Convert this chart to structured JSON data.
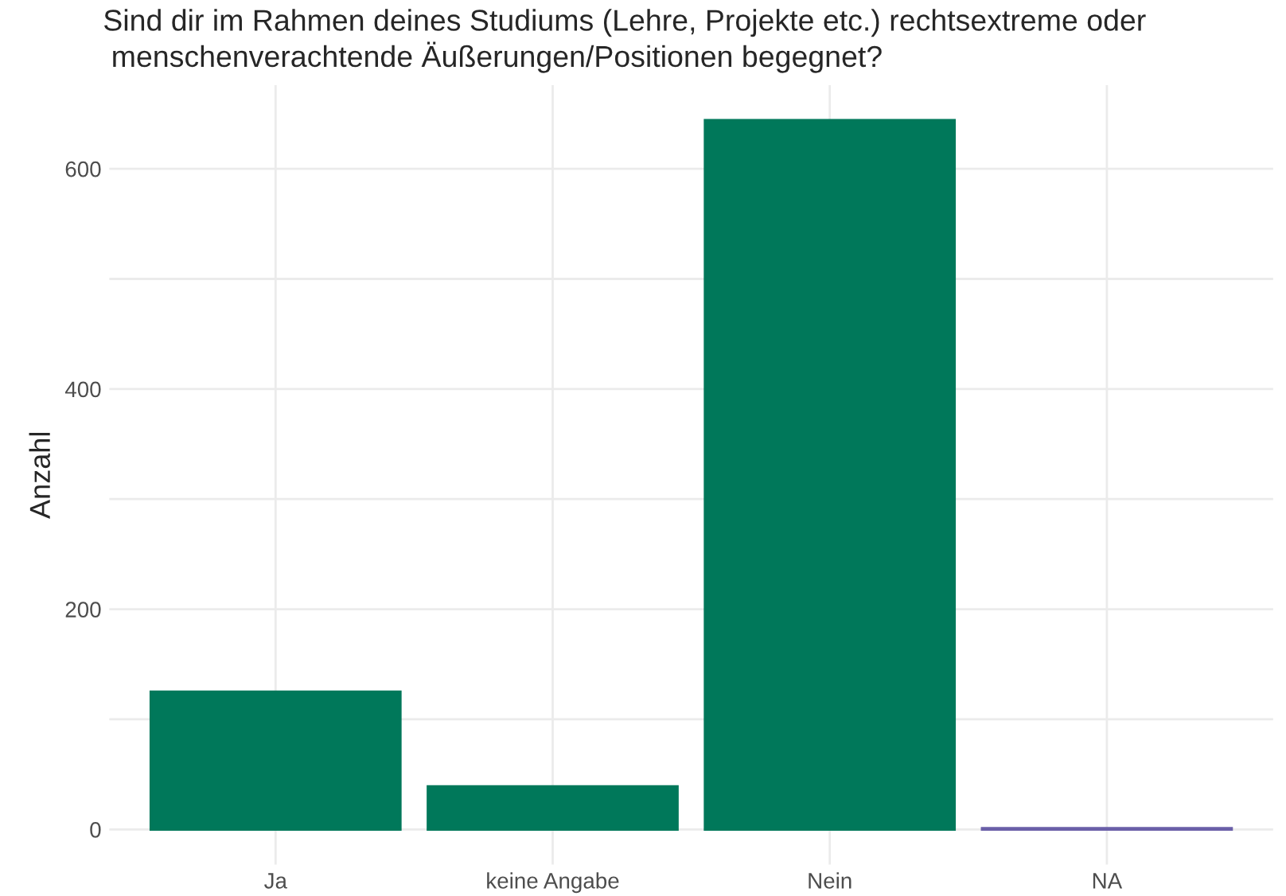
{
  "chart_data": {
    "type": "bar",
    "title": "Sind dir im Rahmen deines Studiums (Lehre, Projekte etc.) rechtsextreme oder\n menschenverachtende Äußerungen/Positionen begegnet?",
    "ylabel": "Anzahl",
    "categories": [
      "Ja",
      "keine Angabe",
      "Nein",
      "NA"
    ],
    "values": [
      125,
      39,
      644,
      1
    ],
    "colors": [
      "#00785a",
      "#00785a",
      "#00785a",
      "#6a5fa8"
    ],
    "ylim": [
      -32,
      676
    ],
    "yticks": [
      0,
      {
        "value": 100,
        "label": null
      },
      200,
      {
        "value": 300,
        "label": null
      },
      400,
      {
        "value": 500,
        "label": null
      },
      600
    ],
    "grid": true
  }
}
